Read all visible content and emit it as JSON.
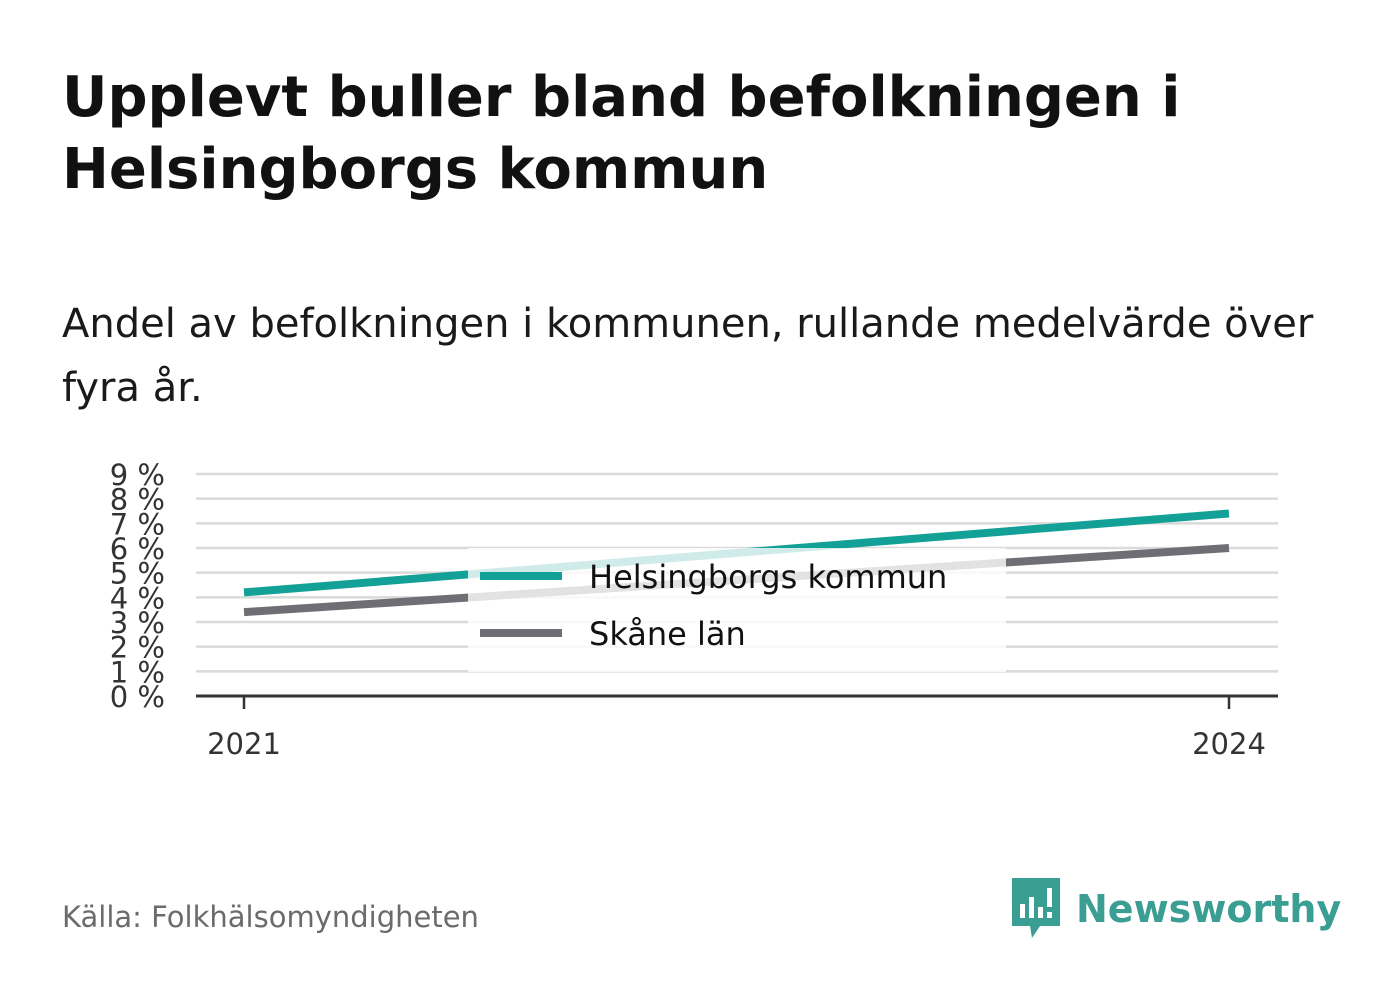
{
  "title": "Upplevt buller bland befolkningen i Helsingborgs kommun",
  "subtitle": "Andel av befolkningen i kommunen, rullande medelvärde över fyra år.",
  "source": "Källa: Folkhälsomyndigheten",
  "brand": {
    "name": "Newsworthy",
    "icon": "newsworthy-logo-icon",
    "color": "#3a9e92"
  },
  "chart_data": {
    "type": "line",
    "x": [
      2021,
      2024
    ],
    "x_tick_labels": [
      "2021",
      "2024"
    ],
    "y_tick_labels": [
      "0 %",
      "1 %",
      "2 %",
      "3 %",
      "4 %",
      "5 %",
      "6 %",
      "7 %",
      "8 %",
      "9 %"
    ],
    "ylim": [
      0,
      9
    ],
    "grid": true,
    "legend_placement": "center",
    "series": [
      {
        "name": "Helsingborgs kommun",
        "values": [
          4.2,
          7.4
        ],
        "color": "#13a096"
      },
      {
        "name": "Skåne län",
        "values": [
          3.4,
          6.0
        ],
        "color": "#6e6e74"
      }
    ]
  }
}
